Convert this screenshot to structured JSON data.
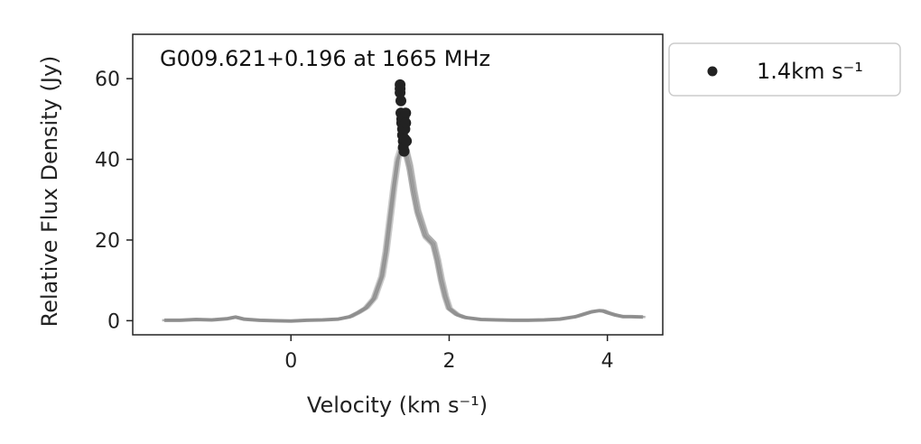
{
  "chart_data": {
    "type": "line",
    "title": "G009.621+0.196 at 1665 MHz",
    "xlabel": "Velocity (km s⁻¹)",
    "ylabel": "Relative Flux Density (Jy)",
    "xlim": [
      -2.0,
      4.7
    ],
    "ylim": [
      -3.5,
      71
    ],
    "xticks": [
      0,
      2,
      4
    ],
    "yticks": [
      0,
      20,
      40,
      60
    ],
    "xtick_labels": [
      "0",
      "2",
      "4"
    ],
    "ytick_labels": [
      "0",
      "20",
      "40",
      "60"
    ],
    "grid": false,
    "legend_position": "outside-right",
    "spectrum_color": "#8c8c8c",
    "point_color": "#222222",
    "series": [
      {
        "type": "line",
        "x": [
          -1.6,
          -1.4,
          -1.2,
          -1.0,
          -0.8,
          -0.7,
          -0.6,
          -0.4,
          -0.2,
          0.0,
          0.2,
          0.4,
          0.6,
          0.75,
          0.85,
          0.95,
          1.05,
          1.15,
          1.2,
          1.25,
          1.3,
          1.35,
          1.4,
          1.45,
          1.5,
          1.55,
          1.6,
          1.65,
          1.7,
          1.75,
          1.8,
          1.85,
          1.9,
          1.95,
          2.0,
          2.1,
          2.2,
          2.4,
          2.6,
          2.8,
          3.0,
          3.2,
          3.4,
          3.6,
          3.7,
          3.8,
          3.9,
          3.95,
          4.0,
          4.1,
          4.2,
          4.3,
          4.45
        ],
        "y": [
          0.1,
          0.1,
          0.3,
          0.2,
          0.5,
          0.9,
          0.4,
          0.1,
          0.0,
          -0.1,
          0.1,
          0.2,
          0.4,
          1.0,
          2.0,
          3.2,
          5.5,
          11,
          17,
          25,
          33,
          40,
          43,
          42,
          38,
          32,
          27,
          24,
          21,
          20,
          19,
          15,
          10,
          6,
          3,
          1.5,
          0.8,
          0.3,
          0.2,
          0.1,
          0.1,
          0.2,
          0.4,
          1.0,
          1.6,
          2.2,
          2.5,
          2.4,
          2.0,
          1.4,
          1.0,
          1.0,
          0.9
        ]
      },
      {
        "type": "scatter",
        "name": "1.4km s⁻¹",
        "x": [
          1.38,
          1.38,
          1.38,
          1.39,
          1.39,
          1.4,
          1.4,
          1.41,
          1.41,
          1.42,
          1.42,
          1.43,
          1.43,
          1.44,
          1.44,
          1.45,
          1.45,
          1.46
        ],
        "y": [
          58.5,
          57.5,
          56.5,
          54.5,
          51.5,
          50,
          49,
          47.5,
          46,
          44.5,
          43,
          42,
          50.5,
          47.5,
          45,
          51.5,
          49,
          44.5
        ]
      }
    ]
  }
}
